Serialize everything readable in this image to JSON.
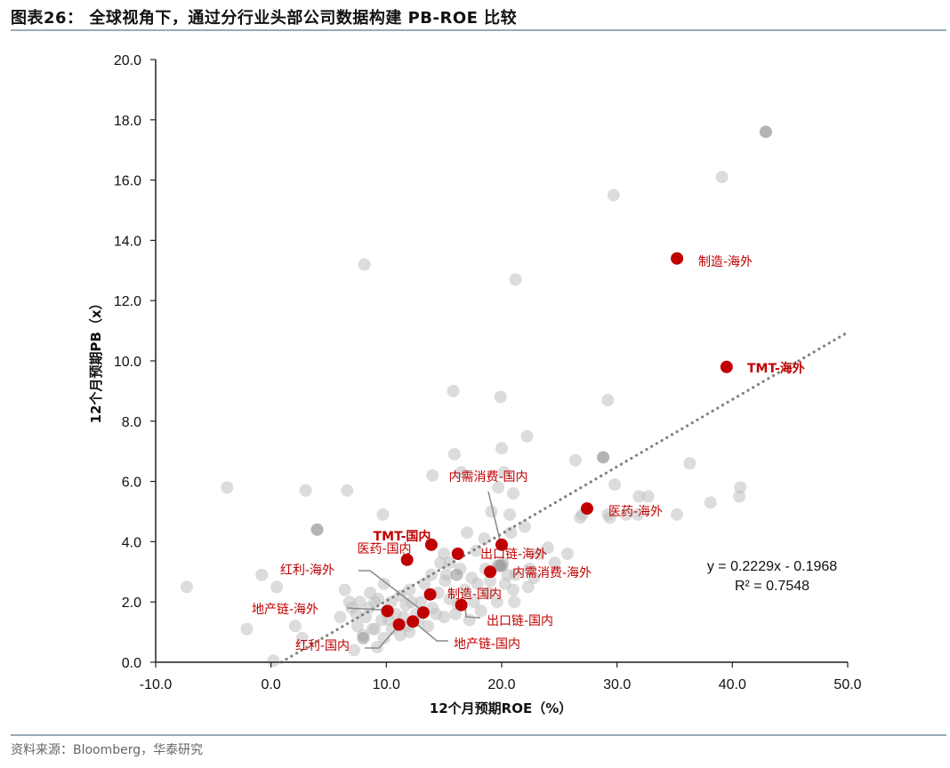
{
  "title": "图表26： 全球视角下，通过分行业头部公司数据构建 PB-ROE 比较",
  "source": "资料来源：Bloomberg，华泰研究",
  "colors": {
    "highlight": "#c00000",
    "background_point": "#c8c8c8",
    "trendline": "#808080",
    "rule": "#99aabb"
  },
  "chart_data": {
    "type": "scatter",
    "title": "全球视角下，通过分行业头部公司数据构建 PB-ROE 比较",
    "xlabel": "12个月预期ROE（%）",
    "ylabel": "12个月预期PB（x）",
    "xlim": [
      -10,
      50
    ],
    "ylim": [
      0,
      20
    ],
    "x_ticks": [
      "-10.0",
      "0.0",
      "10.0",
      "20.0",
      "30.0",
      "40.0",
      "50.0"
    ],
    "y_ticks": [
      "0.0",
      "2.0",
      "4.0",
      "6.0",
      "8.0",
      "10.0",
      "12.0",
      "14.0",
      "16.0",
      "18.0",
      "20.0"
    ],
    "grid": false,
    "trendline": {
      "type": "linear",
      "slope": 0.2229,
      "intercept": -0.1968,
      "equation": "y = 0.2229x - 0.1968",
      "r_squared": "R² = 0.7548",
      "style": "dotted"
    },
    "highlighted_series": [
      {
        "name": "制造-海外",
        "x": 35.2,
        "y": 13.4
      },
      {
        "name": "TMT-海外",
        "x": 39.5,
        "y": 9.8
      },
      {
        "name": "医药-海外",
        "x": 27.4,
        "y": 5.1
      },
      {
        "name": "内需消费-国内",
        "x": 20.0,
        "y": 3.9
      },
      {
        "name": "TMT-国内",
        "x": 13.9,
        "y": 3.9
      },
      {
        "name": "医药-国内",
        "x": 11.8,
        "y": 3.4
      },
      {
        "name": "出口链-海外",
        "x": 16.2,
        "y": 3.6
      },
      {
        "name": "内需消费-海外",
        "x": 19.0,
        "y": 3.0
      },
      {
        "name": "制造-国内",
        "x": 13.8,
        "y": 2.25
      },
      {
        "name": "出口链-国内",
        "x": 16.5,
        "y": 1.9
      },
      {
        "name": "红利-海外",
        "x": 13.2,
        "y": 1.65
      },
      {
        "name": "地产链-海外",
        "x": 10.1,
        "y": 1.7
      },
      {
        "name": "地产链-国内",
        "x": 12.3,
        "y": 1.35
      },
      {
        "name": "红利-国内",
        "x": 11.1,
        "y": 1.25
      }
    ],
    "background_points": [
      [
        42.9,
        17.6
      ],
      [
        39.1,
        16.1
      ],
      [
        29.7,
        15.5
      ],
      [
        8.1,
        13.2
      ],
      [
        21.2,
        12.7
      ],
      [
        15.8,
        9.0
      ],
      [
        19.9,
        8.8
      ],
      [
        29.2,
        8.7
      ],
      [
        22.2,
        7.5
      ],
      [
        20.0,
        7.1
      ],
      [
        26.4,
        6.7
      ],
      [
        28.8,
        6.8
      ],
      [
        36.3,
        6.6
      ],
      [
        15.9,
        6.9
      ],
      [
        14.0,
        6.2
      ],
      [
        16.5,
        6.3
      ],
      [
        20.2,
        6.3
      ],
      [
        29.8,
        5.9
      ],
      [
        19.7,
        5.8
      ],
      [
        -3.8,
        5.8
      ],
      [
        3.0,
        5.7
      ],
      [
        6.6,
        5.7
      ],
      [
        21.0,
        5.6
      ],
      [
        31.9,
        5.5
      ],
      [
        32.7,
        5.5
      ],
      [
        40.7,
        5.8
      ],
      [
        40.6,
        5.5
      ],
      [
        19.1,
        5.0
      ],
      [
        20.7,
        4.9
      ],
      [
        9.7,
        4.9
      ],
      [
        26.8,
        4.8
      ],
      [
        27.0,
        4.9
      ],
      [
        29.2,
        4.9
      ],
      [
        30.8,
        4.9
      ],
      [
        31.8,
        4.9
      ],
      [
        35.2,
        4.9
      ],
      [
        38.1,
        5.3
      ],
      [
        29.4,
        4.8
      ],
      [
        4.0,
        4.4
      ],
      [
        17.0,
        4.3
      ],
      [
        18.5,
        4.1
      ],
      [
        22.0,
        4.5
      ],
      [
        20.8,
        4.3
      ],
      [
        15.0,
        3.6
      ],
      [
        17.8,
        3.7
      ],
      [
        23.2,
        3.6
      ],
      [
        24.0,
        3.8
      ],
      [
        25.7,
        3.6
      ],
      [
        15.5,
        3.3
      ],
      [
        20.1,
        3.3
      ],
      [
        22.4,
        3.1
      ],
      [
        21.2,
        2.9
      ],
      [
        24.6,
        3.3
      ],
      [
        -0.8,
        2.9
      ],
      [
        0.5,
        2.5
      ],
      [
        6.4,
        2.4
      ],
      [
        9.8,
        2.6
      ],
      [
        15.1,
        2.7
      ],
      [
        17.9,
        2.6
      ],
      [
        22.3,
        2.5
      ],
      [
        -7.3,
        2.5
      ],
      [
        2.1,
        1.2
      ],
      [
        -2.1,
        1.1
      ],
      [
        2.7,
        0.8
      ],
      [
        0.2,
        0.05
      ],
      [
        7.2,
        0.4
      ],
      [
        9.2,
        0.5
      ],
      [
        6.0,
        1.5
      ],
      [
        7.0,
        1.8
      ],
      [
        7.7,
        2.0
      ],
      [
        8.2,
        1.5
      ],
      [
        8.5,
        1.8
      ],
      [
        9.0,
        1.1
      ],
      [
        9.3,
        2.1
      ],
      [
        9.6,
        1.4
      ],
      [
        10.4,
        2.0
      ],
      [
        10.8,
        1.6
      ],
      [
        11.2,
        2.2
      ],
      [
        11.7,
        1.9
      ],
      [
        12.0,
        2.4
      ],
      [
        12.6,
        1.6
      ],
      [
        13.0,
        2.0
      ],
      [
        13.3,
        2.6
      ],
      [
        13.6,
        1.2
      ],
      [
        14.0,
        1.8
      ],
      [
        14.5,
        2.3
      ],
      [
        15.0,
        1.5
      ],
      [
        15.5,
        2.1
      ],
      [
        16.0,
        1.6
      ],
      [
        16.8,
        2.4
      ],
      [
        17.2,
        1.4
      ],
      [
        17.6,
        2.0
      ],
      [
        18.2,
        1.7
      ],
      [
        18.9,
        2.3
      ],
      [
        19.6,
        2.0
      ],
      [
        20.3,
        2.6
      ],
      [
        21.1,
        2.0
      ],
      [
        8.0,
        0.9
      ],
      [
        8.8,
        1.1
      ],
      [
        9.8,
        0.8
      ],
      [
        10.5,
        1.1
      ],
      [
        11.2,
        0.9
      ],
      [
        12.0,
        1.0
      ],
      [
        12.8,
        1.4
      ],
      [
        7.5,
        1.2
      ],
      [
        10.0,
        1.7
      ],
      [
        11.5,
        1.5
      ],
      [
        12.2,
        2.0
      ],
      [
        13.9,
        2.9
      ],
      [
        14.7,
        3.3
      ],
      [
        15.2,
        2.9
      ],
      [
        16.4,
        3.1
      ],
      [
        17.4,
        2.8
      ],
      [
        18.6,
        3.1
      ],
      [
        19.6,
        3.2
      ],
      [
        20.5,
        2.9
      ],
      [
        9.0,
        2.0
      ],
      [
        10.2,
        1.4
      ],
      [
        11.9,
        1.2
      ],
      [
        14.3,
        1.6
      ],
      [
        16.2,
        1.9
      ],
      [
        19.0,
        2.7
      ],
      [
        21.0,
        2.4
      ],
      [
        22.8,
        2.8
      ],
      [
        6.8,
        2.0
      ],
      [
        7.4,
        1.6
      ],
      [
        8.6,
        2.3
      ]
    ],
    "dark_points": [
      [
        42.9,
        17.6
      ],
      [
        28.8,
        6.8
      ],
      [
        4.0,
        4.4
      ],
      [
        19.8,
        3.2
      ],
      [
        20.0,
        3.2
      ],
      [
        16.1,
        2.9
      ],
      [
        8.0,
        0.8
      ]
    ],
    "annotations": [
      {
        "text": "y = 0.2229x - 0.1968"
      },
      {
        "text": "R² = 0.7548"
      }
    ]
  }
}
